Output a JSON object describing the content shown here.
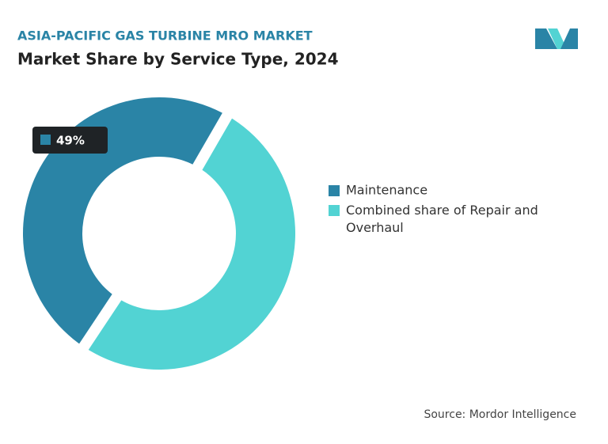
{
  "chart_data": {
    "type": "donut",
    "supertitle": "ASIA-PACIFIC GAS TURBINE MRO MARKET",
    "title": "Market Share by Service Type, 2024",
    "categories": [
      "Maintenance",
      "Combined share of Repair and Overhaul"
    ],
    "values": [
      49,
      51
    ],
    "value_labels": [
      "49%",
      null
    ],
    "colors": [
      "#2a84a6",
      "#52d3d3"
    ],
    "source": "Source: Mordor Intelligence"
  }
}
